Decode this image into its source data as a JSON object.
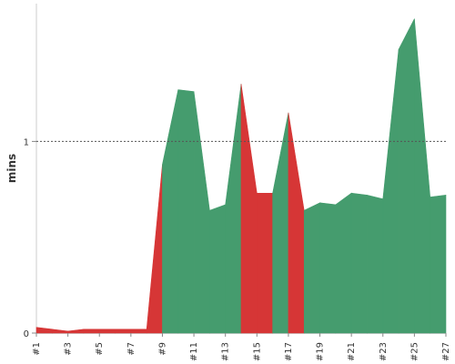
{
  "chart_data": {
    "type": "area",
    "title": "",
    "xlabel": "",
    "ylabel": "mins",
    "ylim": [
      0,
      1.7
    ],
    "yticks": [
      0,
      1
    ],
    "reference_line": 1,
    "x": [
      "#1",
      "#2",
      "#3",
      "#4",
      "#5",
      "#6",
      "#7",
      "#8",
      "#9",
      "#10",
      "#11",
      "#12",
      "#13",
      "#14",
      "#15",
      "#16",
      "#17",
      "#18",
      "#19",
      "#20",
      "#21",
      "#22",
      "#23",
      "#24",
      "#25",
      "#26",
      "#27"
    ],
    "xtick_labels": [
      "#1",
      "#3",
      "#5",
      "#7",
      "#9",
      "#11",
      "#13",
      "#15",
      "#17",
      "#19",
      "#21",
      "#23",
      "#25",
      "#27"
    ],
    "values": [
      0.03,
      0.02,
      0.01,
      0.02,
      0.02,
      0.02,
      0.02,
      0.02,
      0.88,
      1.27,
      1.26,
      0.64,
      0.67,
      1.3,
      0.73,
      0.73,
      1.15,
      0.64,
      0.68,
      0.67,
      0.73,
      0.72,
      0.7,
      1.48,
      1.64,
      0.71,
      0.72
    ],
    "status": [
      "red",
      "red",
      "red",
      "red",
      "red",
      "red",
      "red",
      "red",
      "green",
      "green",
      "green",
      "green",
      "green",
      "red",
      "red",
      "green",
      "red",
      "green",
      "green",
      "green",
      "green",
      "green",
      "green",
      "green",
      "green",
      "green",
      "green"
    ],
    "colors": {
      "green": "#459c6e",
      "red": "#d63636"
    },
    "grid": false
  }
}
